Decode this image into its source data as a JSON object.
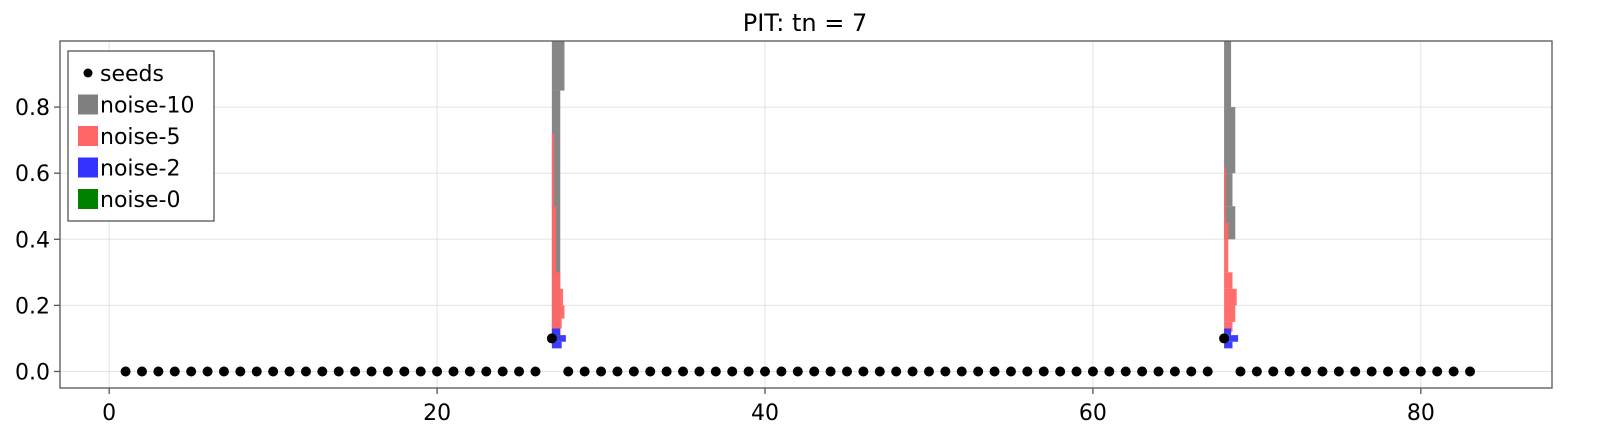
{
  "chart_data": {
    "type": "scatter",
    "title": "PIT: tn = 7",
    "xlabel": "",
    "ylabel": "",
    "xlim": [
      -3,
      88
    ],
    "ylim": [
      -0.05,
      1.0
    ],
    "x_ticks": [
      0,
      20,
      40,
      60,
      80
    ],
    "x_tick_labels": [
      "0",
      "20",
      "40",
      "60",
      "80"
    ],
    "y_ticks": [
      0.0,
      0.2,
      0.4,
      0.6,
      0.8
    ],
    "y_tick_labels": [
      "0.0",
      "0.2",
      "0.4",
      "0.6",
      "0.8"
    ],
    "grid": true,
    "legend_position": "top-left",
    "seeds": {
      "name": "seeds",
      "color": "#000000",
      "baseline_y": 0.0,
      "baseline_x": [
        1,
        2,
        3,
        4,
        5,
        6,
        7,
        8,
        9,
        10,
        11,
        12,
        13,
        14,
        15,
        16,
        17,
        18,
        19,
        20,
        21,
        22,
        23,
        24,
        25,
        26,
        28,
        29,
        30,
        31,
        32,
        33,
        34,
        35,
        36,
        37,
        38,
        39,
        40,
        41,
        42,
        43,
        44,
        45,
        46,
        47,
        48,
        49,
        50,
        51,
        52,
        53,
        54,
        55,
        56,
        57,
        58,
        59,
        60,
        61,
        62,
        63,
        64,
        65,
        66,
        67,
        69,
        70,
        71,
        72,
        73,
        74,
        75,
        76,
        77,
        78,
        79,
        80,
        81,
        82,
        83
      ],
      "elevated": [
        {
          "x": 27,
          "y": 0.1
        },
        {
          "x": 68,
          "y": 0.1
        }
      ]
    },
    "series": [
      {
        "name": "noise-10",
        "color": "#7f7f7f",
        "histograms": [
          {
            "x": 27,
            "bins": [
              [
                0.1,
                0.85,
                0.6
              ],
              [
                0.85,
                1.0,
                0.9
              ]
            ]
          },
          {
            "x": 68,
            "bins": [
              [
                0.4,
                0.5,
                0.8
              ],
              [
                0.5,
                0.6,
                0.6
              ],
              [
                0.6,
                0.8,
                0.8
              ],
              [
                0.8,
                1.0,
                0.5
              ]
            ]
          }
        ]
      },
      {
        "name": "noise-5",
        "color": "#ff6666",
        "histograms": [
          {
            "x": 27,
            "bins": [
              [
                0.13,
                0.16,
                0.7
              ],
              [
                0.16,
                0.2,
                0.9
              ],
              [
                0.2,
                0.25,
                0.8
              ],
              [
                0.25,
                0.3,
                0.6
              ],
              [
                0.3,
                0.5,
                0.3
              ],
              [
                0.5,
                0.72,
                0.15
              ]
            ]
          },
          {
            "x": 68,
            "bins": [
              [
                0.12,
                0.15,
                0.6
              ],
              [
                0.15,
                0.2,
                0.8
              ],
              [
                0.2,
                0.25,
                0.9
              ],
              [
                0.25,
                0.3,
                0.6
              ],
              [
                0.3,
                0.45,
                0.3
              ],
              [
                0.45,
                0.62,
                0.12
              ]
            ]
          }
        ]
      },
      {
        "name": "noise-2",
        "color": "#3333ff",
        "histograms": [
          {
            "x": 27,
            "bins": [
              [
                0.07,
                0.09,
                0.7
              ],
              [
                0.09,
                0.11,
                1.0
              ],
              [
                0.11,
                0.13,
                0.6
              ]
            ]
          },
          {
            "x": 68,
            "bins": [
              [
                0.07,
                0.09,
                0.6
              ],
              [
                0.09,
                0.11,
                1.0
              ],
              [
                0.11,
                0.13,
                0.5
              ]
            ]
          }
        ]
      },
      {
        "name": "noise-0",
        "color": "#007f00",
        "histograms": [
          {
            "x": 27,
            "bins": [
              [
                0.09,
                0.11,
                0.35
              ]
            ]
          },
          {
            "x": 68,
            "bins": [
              [
                0.09,
                0.11,
                0.35
              ]
            ]
          }
        ]
      }
    ]
  }
}
